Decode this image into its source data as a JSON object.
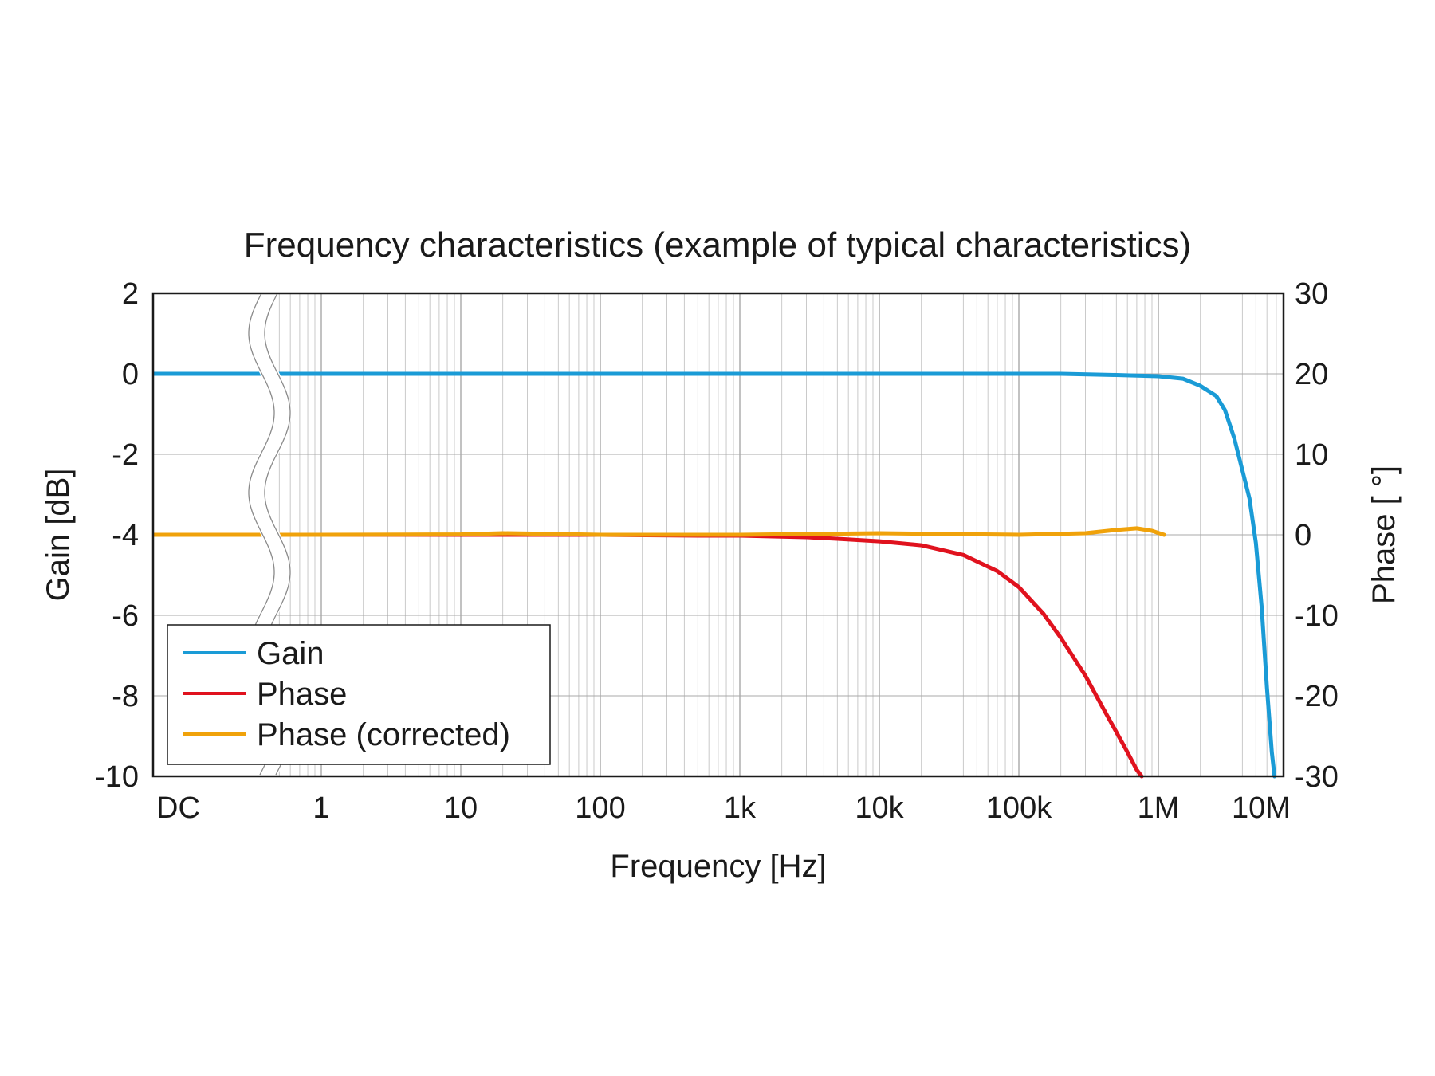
{
  "chart_data": {
    "type": "line",
    "title": "Frequency characteristics (example of typical characteristics)",
    "xlabel": "Frequency [Hz]",
    "ylabel_left": "Gain [dB]",
    "ylabel_right": "Phase [ °]",
    "x_scale": "log",
    "x_break": "axis break between DC and 1",
    "x_ticks": [
      {
        "label": "DC",
        "value": "DC"
      },
      {
        "label": "1",
        "value": 1
      },
      {
        "label": "10",
        "value": 10
      },
      {
        "label": "100",
        "value": 100
      },
      {
        "label": "1k",
        "value": 1000
      },
      {
        "label": "10k",
        "value": 10000
      },
      {
        "label": "100k",
        "value": 100000
      },
      {
        "label": "1M",
        "value": 1000000
      },
      {
        "label": "10M",
        "value": 10000000
      }
    ],
    "ylim_left": [
      -10,
      2
    ],
    "yticks_left": [
      "2",
      "0",
      "-2",
      "-4",
      "-6",
      "-8",
      "-10"
    ],
    "ylim_right": [
      -30,
      30
    ],
    "yticks_right": [
      "30",
      "20",
      "10",
      "0",
      "-10",
      "-20",
      "-30"
    ],
    "grid": true,
    "legend_position": "bottom-left",
    "series": [
      {
        "name": "Gain",
        "axis": "left",
        "color": "#1a9bd6",
        "dc_value": 0,
        "points": [
          [
            1,
            0
          ],
          [
            10,
            0
          ],
          [
            100,
            0
          ],
          [
            1000,
            0
          ],
          [
            10000,
            0
          ],
          [
            100000,
            0
          ],
          [
            200000,
            0
          ],
          [
            500000,
            -0.03
          ],
          [
            1000000,
            -0.06
          ],
          [
            1500000,
            -0.12
          ],
          [
            2000000,
            -0.3
          ],
          [
            2600000,
            -0.55
          ],
          [
            3000000,
            -0.9
          ],
          [
            3500000,
            -1.6
          ],
          [
            4000000,
            -2.4
          ],
          [
            4500000,
            -3.1
          ],
          [
            5000000,
            -4.2
          ],
          [
            5500000,
            -5.8
          ],
          [
            6000000,
            -7.8
          ],
          [
            6500000,
            -9.4
          ],
          [
            6800000,
            -10
          ]
        ]
      },
      {
        "name": "Phase",
        "axis": "right",
        "color": "#e0121e",
        "dc_value": 0,
        "points": [
          [
            1,
            0
          ],
          [
            10,
            0
          ],
          [
            100,
            0
          ],
          [
            500,
            -0.1
          ],
          [
            1000,
            -0.1
          ],
          [
            3000,
            -0.3
          ],
          [
            5000,
            -0.5
          ],
          [
            10000,
            -0.8
          ],
          [
            20000,
            -1.3
          ],
          [
            40000,
            -2.5
          ],
          [
            70000,
            -4.5
          ],
          [
            100000,
            -6.5
          ],
          [
            150000,
            -9.8
          ],
          [
            200000,
            -12.8
          ],
          [
            300000,
            -17.5
          ],
          [
            400000,
            -21.5
          ],
          [
            500000,
            -24.5
          ],
          [
            600000,
            -27
          ],
          [
            700000,
            -29.2
          ],
          [
            760000,
            -30
          ]
        ]
      },
      {
        "name": "Phase (corrected)",
        "axis": "right",
        "color": "#f0a20a",
        "dc_value": 0,
        "points": [
          [
            1,
            0
          ],
          [
            10,
            0.05
          ],
          [
            20,
            0.2
          ],
          [
            50,
            0.1
          ],
          [
            100,
            0
          ],
          [
            500,
            0
          ],
          [
            1000,
            0
          ],
          [
            3000,
            0.1
          ],
          [
            10000,
            0.2
          ],
          [
            30000,
            0.1
          ],
          [
            100000,
            0
          ],
          [
            300000,
            0.2
          ],
          [
            500000,
            0.6
          ],
          [
            700000,
            0.8
          ],
          [
            900000,
            0.5
          ],
          [
            1100000,
            0
          ]
        ]
      }
    ]
  }
}
